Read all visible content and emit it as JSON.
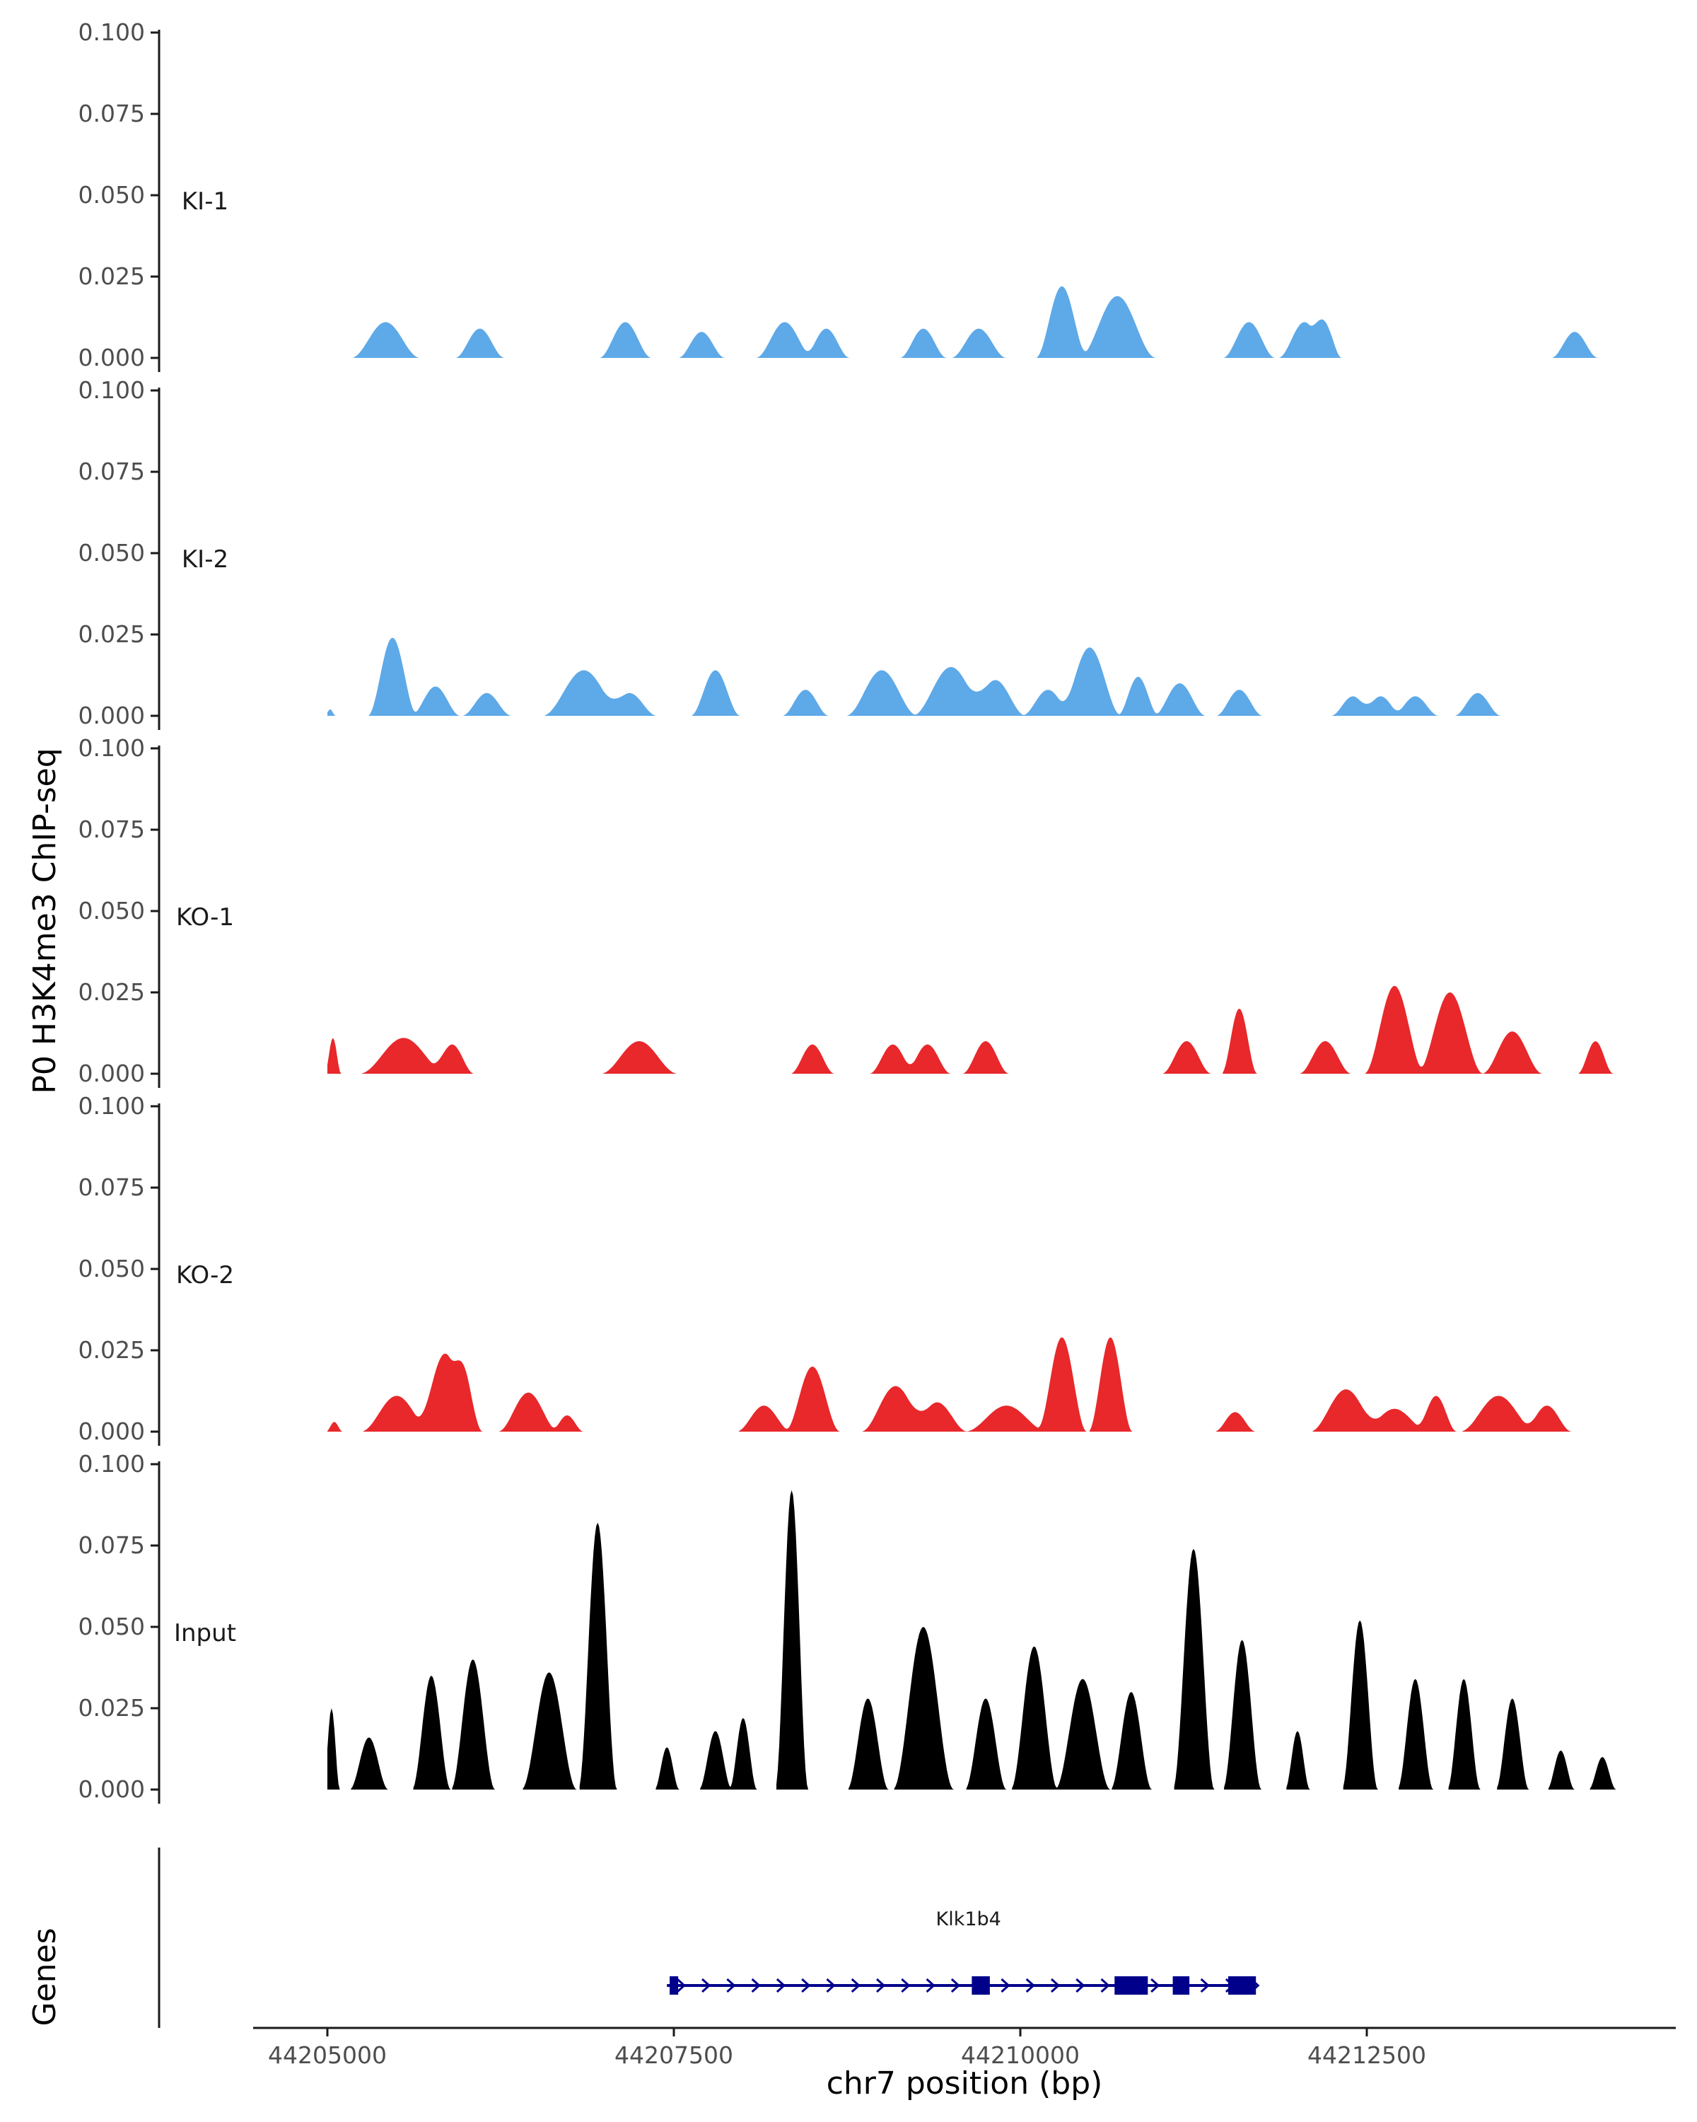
{
  "chart_data": {
    "type": "area",
    "ylabel": "P0 H3K4me3 ChIP-seq",
    "xlabel": "chr7 position (bp)",
    "genes_label": "Genes",
    "ylim": [
      0,
      0.1
    ],
    "yticks": [
      "0.000",
      "0.025",
      "0.050",
      "0.075",
      "0.100"
    ],
    "ytick_values": [
      0,
      0.025,
      0.05,
      0.075,
      0.1
    ],
    "xlim": [
      44204450,
      44214800
    ],
    "xticks": [
      44205000,
      44207500,
      44210000,
      44212500
    ],
    "xtick_labels": [
      "44205000",
      "44207500",
      "44210000",
      "44212500"
    ],
    "colors": {
      "KI": "#5ea9e8",
      "KO": "#e8282b",
      "Input": "#000000",
      "gene": "#00008b",
      "axis": "#1a1a1a"
    },
    "tracks": [
      {
        "name": "KI-1",
        "color": "#5ea9e8",
        "peaks": [
          [
            44205420,
            250,
            0.011
          ],
          [
            44206100,
            180,
            0.009
          ],
          [
            44207150,
            190,
            0.011
          ],
          [
            44207700,
            170,
            0.008
          ],
          [
            44208300,
            210,
            0.011
          ],
          [
            44208600,
            170,
            0.009
          ],
          [
            44209300,
            170,
            0.009
          ],
          [
            44209700,
            200,
            0.009
          ],
          [
            44210300,
            190,
            0.022
          ],
          [
            44210700,
            280,
            0.019
          ],
          [
            44211650,
            190,
            0.011
          ],
          [
            44212050,
            190,
            0.011
          ],
          [
            44212200,
            120,
            0.01
          ],
          [
            44214000,
            170,
            0.008
          ]
        ]
      },
      {
        "name": "KI-2",
        "color": "#5ea9e8",
        "peaks": [
          [
            44205020,
            40,
            0.002
          ],
          [
            44205470,
            180,
            0.024
          ],
          [
            44205780,
            180,
            0.009
          ],
          [
            44206150,
            180,
            0.007
          ],
          [
            44206850,
            300,
            0.014
          ],
          [
            44207180,
            200,
            0.007
          ],
          [
            44207800,
            180,
            0.014
          ],
          [
            44208450,
            170,
            0.008
          ],
          [
            44209000,
            260,
            0.014
          ],
          [
            44209500,
            280,
            0.015
          ],
          [
            44209820,
            220,
            0.011
          ],
          [
            44210200,
            190,
            0.008
          ],
          [
            44210500,
            230,
            0.021
          ],
          [
            44210850,
            150,
            0.012
          ],
          [
            44211150,
            190,
            0.01
          ],
          [
            44211580,
            170,
            0.008
          ],
          [
            44212400,
            160,
            0.006
          ],
          [
            44212600,
            160,
            0.006
          ],
          [
            44212850,
            170,
            0.006
          ],
          [
            44213300,
            170,
            0.007
          ]
        ]
      },
      {
        "name": "KO-1",
        "color": "#e8282b",
        "peaks": [
          [
            44205040,
            60,
            0.011
          ],
          [
            44205550,
            320,
            0.011
          ],
          [
            44205900,
            160,
            0.009
          ],
          [
            44207250,
            280,
            0.01
          ],
          [
            44208500,
            160,
            0.009
          ],
          [
            44209080,
            170,
            0.009
          ],
          [
            44209330,
            170,
            0.009
          ],
          [
            44209750,
            170,
            0.01
          ],
          [
            44211200,
            180,
            0.01
          ],
          [
            44211580,
            130,
            0.02
          ],
          [
            44212200,
            190,
            0.01
          ],
          [
            44212700,
            220,
            0.027
          ],
          [
            44213100,
            240,
            0.025
          ],
          [
            44213550,
            220,
            0.013
          ],
          [
            44214150,
            130,
            0.01
          ]
        ]
      },
      {
        "name": "KO-2",
        "color": "#e8282b",
        "peaks": [
          [
            44205050,
            60,
            0.003
          ],
          [
            44205500,
            260,
            0.011
          ],
          [
            44205850,
            220,
            0.024
          ],
          [
            44206000,
            120,
            0.013
          ],
          [
            44206450,
            220,
            0.012
          ],
          [
            44206730,
            120,
            0.005
          ],
          [
            44208150,
            200,
            0.008
          ],
          [
            44208500,
            200,
            0.02
          ],
          [
            44209100,
            250,
            0.014
          ],
          [
            44209400,
            220,
            0.009
          ],
          [
            44209900,
            300,
            0.008
          ],
          [
            44210300,
            180,
            0.029
          ],
          [
            44210650,
            160,
            0.029
          ],
          [
            44211550,
            150,
            0.006
          ],
          [
            44212350,
            260,
            0.013
          ],
          [
            44212700,
            250,
            0.007
          ],
          [
            44213000,
            150,
            0.011
          ],
          [
            44213450,
            280,
            0.011
          ],
          [
            44213800,
            180,
            0.008
          ]
        ]
      },
      {
        "name": "Input",
        "color": "#000000",
        "peaks": [
          [
            44205030,
            60,
            0.025
          ],
          [
            44205300,
            140,
            0.016
          ],
          [
            44205750,
            140,
            0.035
          ],
          [
            44206050,
            160,
            0.04
          ],
          [
            44206600,
            200,
            0.036
          ],
          [
            44206950,
            140,
            0.082
          ],
          [
            44207450,
            90,
            0.013
          ],
          [
            44207800,
            120,
            0.018
          ],
          [
            44208000,
            100,
            0.022
          ],
          [
            44208350,
            120,
            0.092
          ],
          [
            44208900,
            150,
            0.028
          ],
          [
            44209300,
            220,
            0.05
          ],
          [
            44209750,
            150,
            0.028
          ],
          [
            44210100,
            170,
            0.044
          ],
          [
            44210450,
            200,
            0.034
          ],
          [
            44210800,
            150,
            0.03
          ],
          [
            44211250,
            150,
            0.074
          ],
          [
            44211600,
            140,
            0.046
          ],
          [
            44212000,
            90,
            0.018
          ],
          [
            44212450,
            130,
            0.052
          ],
          [
            44212850,
            130,
            0.034
          ],
          [
            44213200,
            120,
            0.034
          ],
          [
            44213550,
            120,
            0.028
          ],
          [
            44213900,
            100,
            0.012
          ],
          [
            44214200,
            100,
            0.01
          ]
        ]
      }
    ],
    "gene": {
      "name": "Klk1b4",
      "start": 44207450,
      "end": 44211700,
      "exons": [
        [
          44207470,
          44207530
        ],
        [
          44209650,
          44209780
        ],
        [
          44210680,
          44210920
        ],
        [
          44211100,
          44211220
        ],
        [
          44211500,
          44211700
        ]
      ]
    }
  }
}
